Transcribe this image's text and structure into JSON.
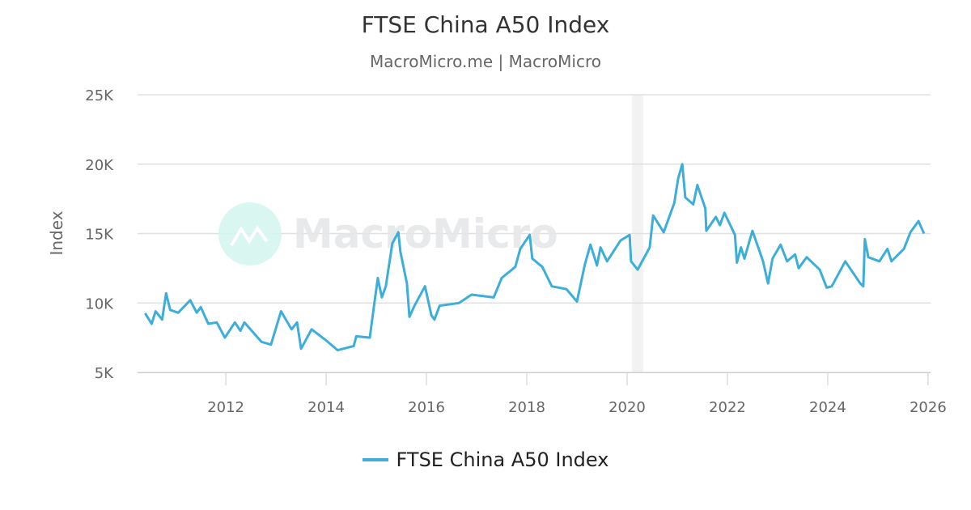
{
  "chart_data": {
    "type": "line",
    "title": "FTSE China A50 Index",
    "subtitle": "MacroMicro.me | MacroMicro",
    "ylabel": "Index",
    "xlabel": "",
    "ylim": [
      5000,
      25000
    ],
    "xlim": [
      2010.24,
      2026.05
    ],
    "y_ticks": [
      {
        "v": 5000,
        "label": "5K"
      },
      {
        "v": 10000,
        "label": "10K"
      },
      {
        "v": 15000,
        "label": "15K"
      },
      {
        "v": 20000,
        "label": "20K"
      },
      {
        "v": 25000,
        "label": "25K"
      }
    ],
    "x_ticks": [
      {
        "v": 2012,
        "label": "2012"
      },
      {
        "v": 2014,
        "label": "2014"
      },
      {
        "v": 2016,
        "label": "2016"
      },
      {
        "v": 2018,
        "label": "2018"
      },
      {
        "v": 2020,
        "label": "2020"
      },
      {
        "v": 2022,
        "label": "2022"
      },
      {
        "v": 2024,
        "label": "2024"
      },
      {
        "v": 2026,
        "label": "2026"
      }
    ],
    "grid": true,
    "legend_position": "bottom",
    "shaded_period": [
      2020.1,
      2020.32
    ],
    "series": [
      {
        "name": "FTSE China A50 Index",
        "color": "#3daed9",
        "x": [
          2010.39,
          2010.52,
          2010.6,
          2010.73,
          2010.81,
          2010.89,
          2011.05,
          2011.29,
          2011.42,
          2011.5,
          2011.65,
          2011.82,
          2011.98,
          2012.18,
          2012.29,
          2012.37,
          2012.71,
          2012.9,
          2013.1,
          2013.31,
          2013.42,
          2013.5,
          2013.71,
          2014.0,
          2014.23,
          2014.55,
          2014.6,
          2014.87,
          2014.95,
          2015.03,
          2015.11,
          2015.19,
          2015.32,
          2015.44,
          2015.48,
          2015.61,
          2015.66,
          2015.76,
          2015.97,
          2016.1,
          2016.16,
          2016.26,
          2016.65,
          2016.9,
          2017.34,
          2017.5,
          2017.77,
          2017.87,
          2018.06,
          2018.11,
          2018.31,
          2018.5,
          2018.79,
          2019.0,
          2019.16,
          2019.27,
          2019.4,
          2019.47,
          2019.6,
          2019.87,
          2020.05,
          2020.08,
          2020.21,
          2020.45,
          2020.52,
          2020.73,
          2020.94,
          2021.02,
          2021.1,
          2021.16,
          2021.32,
          2021.4,
          2021.56,
          2021.58,
          2021.77,
          2021.85,
          2021.94,
          2022.15,
          2022.19,
          2022.27,
          2022.34,
          2022.5,
          2022.71,
          2022.81,
          2022.9,
          2023.06,
          2023.19,
          2023.35,
          2023.42,
          2023.58,
          2023.84,
          2023.98,
          2024.08,
          2024.35,
          2024.65,
          2024.71,
          2024.74,
          2024.81,
          2025.03,
          2025.19,
          2025.27,
          2025.52,
          2025.65,
          2025.81,
          2025.92
        ],
        "values": [
          9260,
          8500,
          9400,
          8800,
          10700,
          9500,
          9300,
          10200,
          9300,
          9700,
          8500,
          8600,
          7500,
          8600,
          8000,
          8600,
          7200,
          7000,
          9400,
          8100,
          8600,
          6700,
          8100,
          7300,
          6600,
          6900,
          7600,
          7500,
          9700,
          11800,
          10400,
          11200,
          14300,
          15100,
          13700,
          11400,
          9000,
          9800,
          11200,
          9100,
          8800,
          9800,
          10000,
          10600,
          10400,
          11800,
          12600,
          13900,
          14900,
          13200,
          12600,
          11200,
          11000,
          10100,
          12800,
          14200,
          12700,
          14000,
          13000,
          14500,
          14900,
          13000,
          12400,
          14000,
          16300,
          15100,
          17200,
          19000,
          20000,
          17600,
          17100,
          18500,
          16800,
          15200,
          16200,
          15600,
          16500,
          14900,
          12900,
          14000,
          13200,
          15200,
          13000,
          11400,
          13200,
          14200,
          13000,
          13500,
          12500,
          13300,
          12400,
          11100,
          11200,
          13000,
          11400,
          11200,
          14600,
          13300,
          13000,
          13900,
          13000,
          13900,
          15100,
          15900,
          15000
        ]
      }
    ]
  },
  "watermark": "MacroMicro"
}
